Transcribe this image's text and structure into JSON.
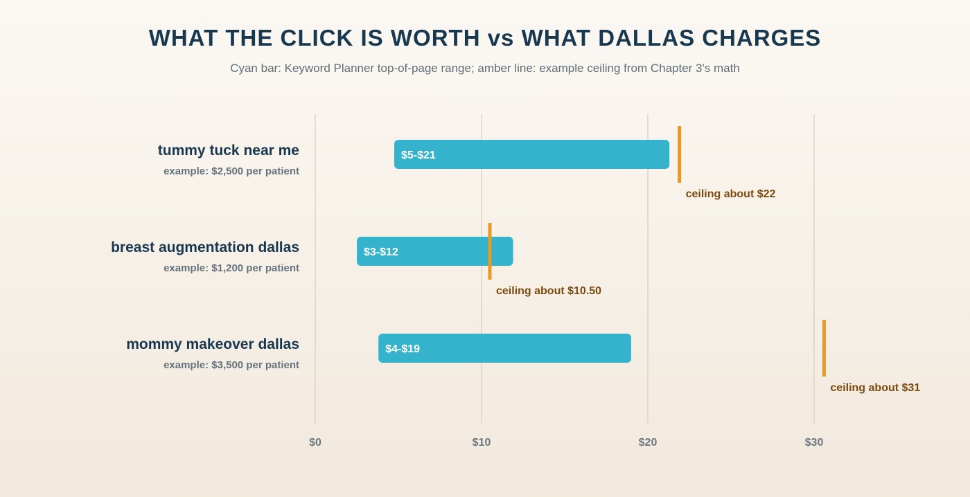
{
  "chart_data": {
    "type": "bar",
    "title": "WHAT THE CLICK IS WORTH vs WHAT DALLAS CHARGES",
    "subtitle": "Cyan bar: Keyword Planner top-of-page range; amber line: example ceiling from Chapter 3's math",
    "xlim": [
      0,
      37
    ],
    "ticks": [
      {
        "value": 0,
        "label": "$0"
      },
      {
        "value": 10,
        "label": "$10"
      },
      {
        "value": 20,
        "label": "$20"
      },
      {
        "value": 30,
        "label": "$30"
      }
    ],
    "grid": true,
    "rows": [
      {
        "keyword": "tummy tuck near me",
        "example": "example: $2,500 per patient",
        "range_low": 4.75,
        "range_high": 21.3,
        "range_label": "$5-$21",
        "ceiling": 21.9,
        "ceiling_label": "ceiling about $22"
      },
      {
        "keyword": "breast augmentation dallas",
        "example": "example: $1,200 per patient",
        "range_low": 2.5,
        "range_high": 11.9,
        "range_label": "$3-$12",
        "ceiling": 10.5,
        "ceiling_label": "ceiling about $10.50"
      },
      {
        "keyword": "mommy makeover dallas",
        "example": "example: $3,500 per patient",
        "range_low": 3.8,
        "range_high": 19.0,
        "range_label": "$4-$19",
        "ceiling": 30.6,
        "ceiling_label": "ceiling about $31"
      }
    ],
    "colors": {
      "bar": "#35b3cd",
      "ceiling": "#e89a26",
      "grid": "#ddd3c5"
    }
  }
}
